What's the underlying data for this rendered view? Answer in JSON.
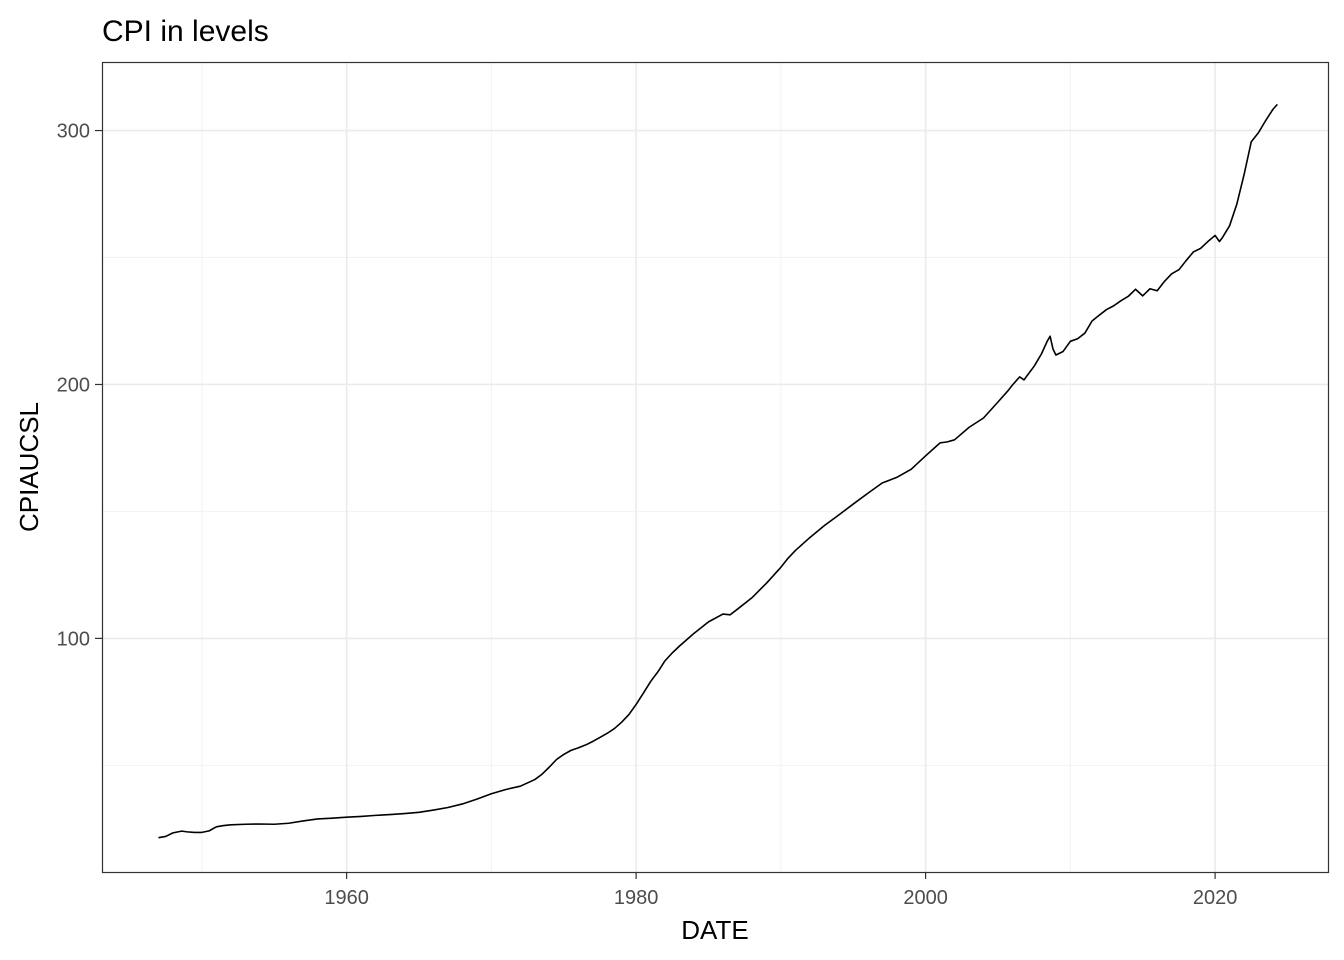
{
  "chart_data": {
    "type": "line",
    "title": "CPI in levels",
    "xlabel": "DATE",
    "ylabel": "CPIAUCSL",
    "x_ticks": [
      1960,
      1980,
      2000,
      2020
    ],
    "y_ticks": [
      100,
      200,
      300
    ],
    "xlim": [
      1943.1,
      2027.8
    ],
    "ylim": [
      8,
      327
    ],
    "grid": true,
    "legend": "none",
    "line_color": "#000000",
    "series": [
      {
        "x": [
          1947.0,
          1947.5,
          1948.0,
          1948.6,
          1949.0,
          1949.5,
          1950.0,
          1950.5,
          1951.0,
          1951.5,
          1952.0,
          1953.0,
          1954.0,
          1955.0,
          1956.0,
          1957.0,
          1958.0,
          1959.0,
          1960.0,
          1961.0,
          1962.0,
          1963.0,
          1964.0,
          1965.0,
          1966.0,
          1967.0,
          1968.0,
          1969.0,
          1970.0,
          1971.0,
          1972.0,
          1973.0,
          1973.5,
          1974.0,
          1974.5,
          1975.0,
          1975.5,
          1976.0,
          1976.5,
          1977.0,
          1977.5,
          1978.0,
          1978.5,
          1979.0,
          1979.5,
          1980.0,
          1980.5,
          1981.0,
          1981.5,
          1982.0,
          1982.5,
          1983.0,
          1984.0,
          1985.0,
          1986.0,
          1986.5,
          1987.0,
          1988.0,
          1989.0,
          1990.0,
          1990.5,
          1991.0,
          1992.0,
          1993.0,
          1994.0,
          1995.0,
          1996.0,
          1997.0,
          1998.0,
          1999.0,
          2000.0,
          2001.0,
          2001.5,
          2002.0,
          2003.0,
          2004.0,
          2005.0,
          2005.7,
          2006.0,
          2006.5,
          2006.8,
          2007.0,
          2007.5,
          2008.0,
          2008.4,
          2008.6,
          2008.8,
          2009.0,
          2009.5,
          2010.0,
          2010.5,
          2011.0,
          2011.5,
          2012.0,
          2012.5,
          2013.0,
          2013.5,
          2014.0,
          2014.5,
          2015.0,
          2015.5,
          2016.0,
          2016.5,
          2017.0,
          2017.5,
          2018.0,
          2018.5,
          2019.0,
          2019.5,
          2020.0,
          2020.3,
          2020.5,
          2021.0,
          2021.5,
          2022.0,
          2022.5,
          2023.0,
          2023.5,
          2024.0,
          2024.3
        ],
        "y": [
          21.5,
          22.0,
          23.4,
          24.1,
          23.8,
          23.6,
          23.6,
          24.2,
          25.8,
          26.3,
          26.6,
          26.8,
          26.9,
          26.8,
          27.2,
          28.1,
          28.9,
          29.2,
          29.6,
          29.9,
          30.3,
          30.6,
          31.0,
          31.5,
          32.4,
          33.4,
          34.8,
          36.7,
          38.8,
          40.5,
          41.8,
          44.4,
          46.5,
          49.3,
          52.3,
          54.3,
          55.9,
          56.9,
          58.0,
          59.4,
          61.0,
          62.6,
          64.5,
          67.0,
          70.0,
          74.0,
          78.4,
          83.0,
          86.8,
          91.2,
          94.3,
          97.0,
          102.0,
          106.5,
          109.6,
          109.3,
          111.5,
          116.0,
          121.7,
          128.0,
          131.6,
          134.6,
          139.7,
          144.4,
          148.6,
          152.9,
          157.1,
          161.2,
          163.4,
          166.6,
          171.9,
          177.0,
          177.4,
          178.2,
          183.1,
          186.8,
          193.1,
          197.6,
          199.8,
          203.0,
          201.8,
          203.4,
          207.2,
          212.0,
          217.0,
          219.0,
          214.0,
          211.6,
          213.0,
          217.0,
          218.0,
          220.2,
          225.0,
          227.3,
          229.5,
          231.0,
          233.0,
          234.7,
          237.5,
          234.9,
          237.7,
          236.9,
          240.6,
          243.6,
          245.2,
          248.8,
          252.2,
          253.6,
          256.3,
          258.7,
          256.3,
          257.8,
          262.5,
          271.0,
          282.6,
          295.6,
          299.2,
          304.0,
          308.4,
          310.3
        ]
      }
    ]
  }
}
